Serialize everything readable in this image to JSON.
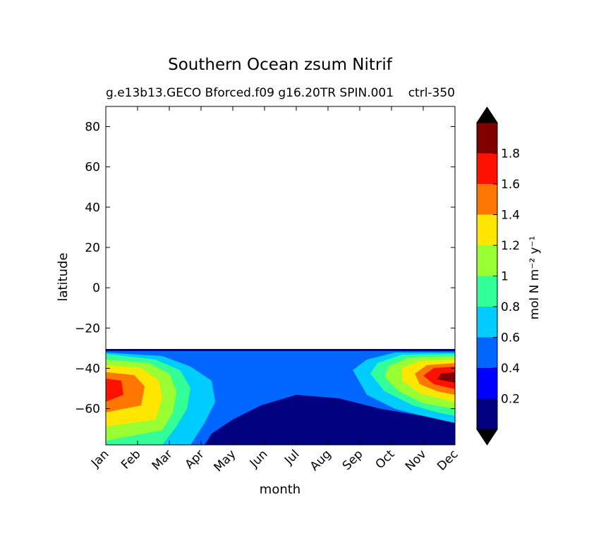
{
  "chart_data": {
    "type": "heatmap",
    "title": "Southern Ocean zsum Nitrif",
    "subtitle_left": "g.e13b13.GECO Bforced.f09 g16.20TR SPIN.001",
    "subtitle_right": "ctrl-350",
    "xlabel": "month",
    "ylabel": "latitude",
    "x_categories": [
      "Jan",
      "Feb",
      "Mar",
      "Apr",
      "May",
      "Jun",
      "Jul",
      "Aug",
      "Sep",
      "Oct",
      "Nov",
      "Dec"
    ],
    "yticks": [
      "80",
      "60",
      "40",
      "20",
      "0",
      "−20",
      "−40",
      "−60"
    ],
    "yticks_values": [
      80,
      60,
      40,
      20,
      0,
      -20,
      -40,
      -60
    ],
    "ylim": [
      -78,
      90
    ],
    "data_extent_lat": [
      -78,
      -32
    ],
    "levels": [
      0,
      0.2,
      0.4,
      0.6,
      0.8,
      1.0,
      1.2,
      1.4,
      1.6,
      1.8,
      2.0
    ],
    "colors": [
      "#000080",
      "#0000ff",
      "#0066ff",
      "#00ccff",
      "#33ff99",
      "#99ff33",
      "#ffe600",
      "#ff7700",
      "#ff1100",
      "#800000"
    ],
    "extend_colors": {
      "under": "#000000",
      "over": "#000000"
    },
    "colorbar_ticks": [
      "0.2",
      "0.4",
      "0.6",
      "0.8",
      "1",
      "1.2",
      "1.4",
      "1.6",
      "1.8"
    ],
    "colorbar_label": "mol N m⁻² y⁻¹",
    "grid": false
  }
}
